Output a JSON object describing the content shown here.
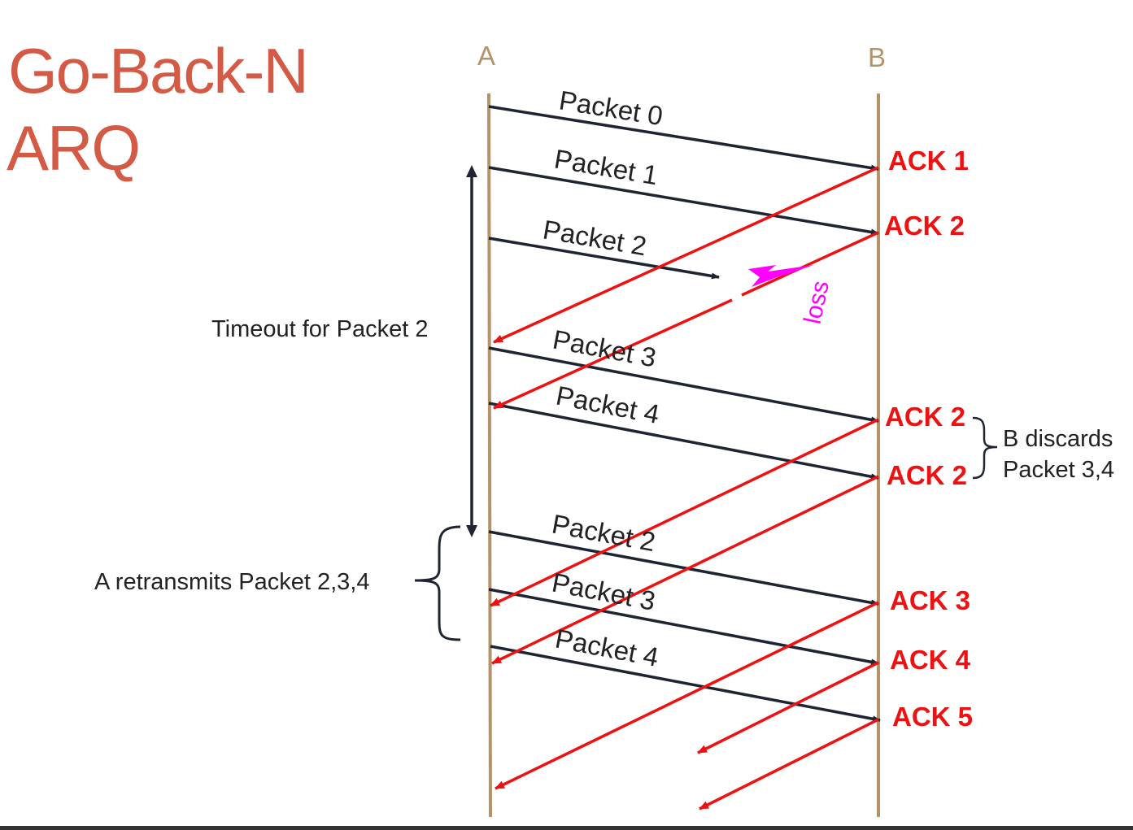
{
  "title": {
    "line1": "Go-Back-N",
    "line2": "ARQ"
  },
  "stations": {
    "a": "A",
    "b": "B"
  },
  "packets": [
    {
      "label": "Packet 0"
    },
    {
      "label": "Packet 1"
    },
    {
      "label": "Packet 2",
      "lost": true
    },
    {
      "label": "Packet 3"
    },
    {
      "label": "Packet 4"
    },
    {
      "label": "Packet 2"
    },
    {
      "label": "Packet 3"
    },
    {
      "label": "Packet 4"
    }
  ],
  "acks": [
    {
      "label": "ACK 1"
    },
    {
      "label": "ACK 2"
    },
    {
      "label": "ACK 2"
    },
    {
      "label": "ACK 2"
    },
    {
      "label": "ACK 3"
    },
    {
      "label": "ACK 4"
    },
    {
      "label": "ACK 5"
    }
  ],
  "loss_label": "loss",
  "notes": {
    "timeout": "Timeout for Packet 2",
    "retransmit": "A retransmits Packet 2,3,4",
    "discard_line1": "B discards",
    "discard_line2": "Packet 3,4"
  },
  "colors": {
    "title": "#d35a45",
    "timeline": "#b3946a",
    "packet": "#1f2433",
    "ack": "#ee1111",
    "loss": "#ff00ff"
  }
}
